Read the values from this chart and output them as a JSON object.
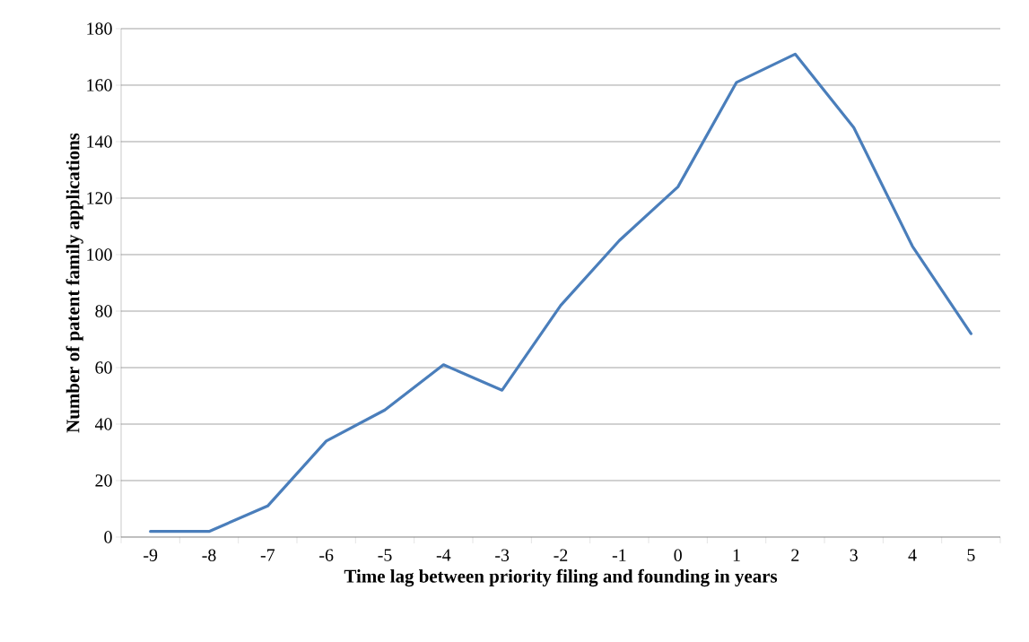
{
  "chart_data": {
    "type": "line",
    "xlabel": "Time lag between priority filing and founding in years",
    "ylabel": "Number of patent family applications",
    "categories": [
      "-9",
      "-8",
      "-7",
      "-6",
      "-5",
      "-4",
      "-3",
      "-2",
      "-1",
      "0",
      "1",
      "2",
      "3",
      "4",
      "5"
    ],
    "series": [
      {
        "color": "#4a7ebb",
        "values": [
          2,
          2,
          11,
          34,
          45,
          61,
          52,
          82,
          105,
          124,
          161,
          171,
          145,
          103,
          72
        ]
      }
    ],
    "ylim": [
      0,
      180
    ],
    "yticks": [
      0,
      20,
      40,
      60,
      80,
      100,
      120,
      140,
      160,
      180
    ],
    "grid": "y",
    "marker": "none",
    "line_style": "solid"
  }
}
